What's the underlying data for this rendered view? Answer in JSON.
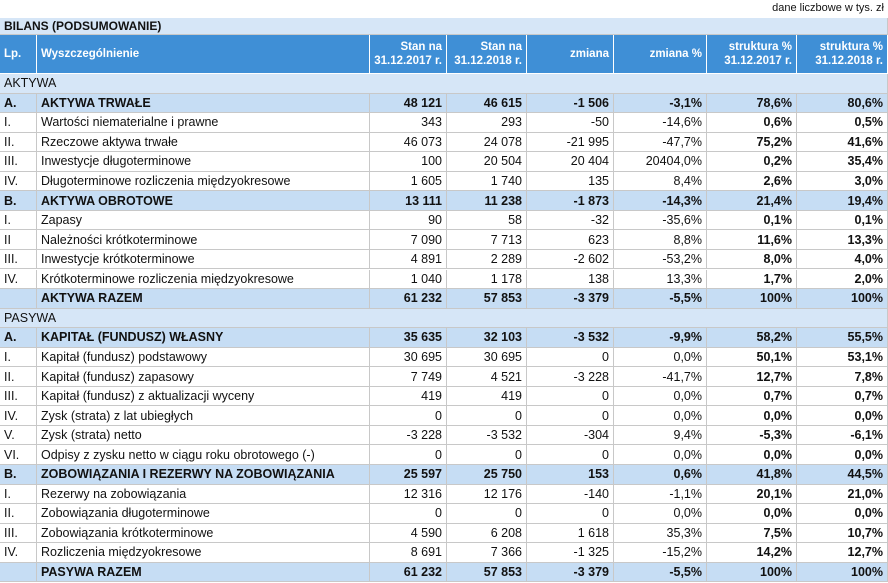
{
  "note": "dane liczbowe w tys. zł",
  "title": "BILANS (PODSUMOWANIE)",
  "header": [
    [
      "Lp."
    ],
    [
      "Wyszczególnienie"
    ],
    [
      "Stan na",
      "31.12.2017 r."
    ],
    [
      "Stan na",
      "31.12.2018 r."
    ],
    [
      "zmiana"
    ],
    [
      "zmiana %"
    ],
    [
      "struktura %",
      "31.12.2017 r."
    ],
    [
      "struktura %",
      "31.12.2018 r."
    ]
  ],
  "sections": [
    {
      "title": "AKTYWA",
      "groups": [
        {
          "row": [
            "A.",
            "AKTYWA TRWAŁE",
            "48 121",
            "46 615",
            "-1 506",
            "-3,1%",
            "78,6%",
            "80,6%"
          ],
          "items": [
            [
              "I.",
              "Wartości niematerialne i prawne",
              "343",
              "293",
              "-50",
              "-14,6%",
              "0,6%",
              "0,5%"
            ],
            [
              "II.",
              "Rzeczowe aktywa trwałe",
              "46 073",
              "24 078",
              "-21 995",
              "-47,7%",
              "75,2%",
              "41,6%"
            ],
            [
              "III.",
              "Inwestycje długoterminowe",
              "100",
              "20 504",
              "20 404",
              "20404,0%",
              "0,2%",
              "35,4%"
            ],
            [
              "IV.",
              "Długoterminowe rozliczenia międzyokresowe",
              "1 605",
              "1 740",
              "135",
              "8,4%",
              "2,6%",
              "3,0%"
            ]
          ]
        },
        {
          "row": [
            "B.",
            "AKTYWA OBROTOWE",
            "13 111",
            "11 238",
            "-1 873",
            "-14,3%",
            "21,4%",
            "19,4%"
          ],
          "items": [
            [
              "I.",
              "Zapasy",
              "90",
              "58",
              "-32",
              "-35,6%",
              "0,1%",
              "0,1%"
            ],
            [
              "II",
              "Należności krótkoterminowe",
              "7 090",
              "7 713",
              "623",
              "8,8%",
              "11,6%",
              "13,3%"
            ],
            [
              "III.",
              "Inwestycje krótkoterminowe",
              "4 891",
              "2 289",
              "-2 602",
              "-53,2%",
              "8,0%",
              "4,0%"
            ],
            [
              "IV.",
              "Krótkoterminowe rozliczenia międzyokresowe",
              "1 040",
              "1 178",
              "138",
              "13,3%",
              "1,7%",
              "2,0%"
            ]
          ]
        }
      ],
      "total": [
        "AKTYWA RAZEM",
        "61 232",
        "57 853",
        "-3 379",
        "-5,5%",
        "100%",
        "100%"
      ]
    },
    {
      "title": "PASYWA",
      "groups": [
        {
          "row": [
            "A.",
            "KAPITAŁ (FUNDUSZ) WŁASNY",
            "35 635",
            "32 103",
            "-3 532",
            "-9,9%",
            "58,2%",
            "55,5%"
          ],
          "items": [
            [
              "I.",
              "Kapitał (fundusz) podstawowy",
              "30 695",
              "30 695",
              "0",
              "0,0%",
              "50,1%",
              "53,1%"
            ],
            [
              "II.",
              "Kapitał (fundusz) zapasowy",
              "7 749",
              "4 521",
              "-3 228",
              "-41,7%",
              "12,7%",
              "7,8%"
            ],
            [
              "III.",
              "Kapitał (fundusz) z aktualizacji wyceny",
              "419",
              "419",
              "0",
              "0,0%",
              "0,7%",
              "0,7%"
            ],
            [
              "IV.",
              "Zysk (strata) z lat ubiegłych",
              "0",
              "0",
              "0",
              "0,0%",
              "0,0%",
              "0,0%"
            ],
            [
              "V.",
              "Zysk (strata) netto",
              "-3 228",
              "-3 532",
              "-304",
              "9,4%",
              "-5,3%",
              "-6,1%"
            ],
            [
              "VI.",
              "Odpisy z zysku netto w ciągu roku obrotowego (-)",
              "0",
              "0",
              "0",
              "0,0%",
              "0,0%",
              "0,0%"
            ]
          ]
        },
        {
          "row": [
            "B.",
            "ZOBOWIĄZANIA I REZERWY NA ZOBOWIĄZANIA",
            "25 597",
            "25 750",
            "153",
            "0,6%",
            "41,8%",
            "44,5%"
          ],
          "items": [
            [
              "I.",
              "Rezerwy na zobowiązania",
              "12 316",
              "12 176",
              "-140",
              "-1,1%",
              "20,1%",
              "21,0%"
            ],
            [
              "II.",
              "Zobowiązania długoterminowe",
              "0",
              "0",
              "0",
              "0,0%",
              "0,0%",
              "0,0%"
            ],
            [
              "III.",
              "Zobowiązania krótkoterminowe",
              "4 590",
              "6 208",
              "1 618",
              "35,3%",
              "7,5%",
              "10,7%"
            ],
            [
              "IV.",
              "Rozliczenia międzyokresowe",
              "8 691",
              "7 366",
              "-1 325",
              "-15,2%",
              "14,2%",
              "12,7%"
            ]
          ]
        }
      ],
      "total": [
        "PASYWA RAZEM",
        "61 232",
        "57 853",
        "-3 379",
        "-5,5%",
        "100%",
        "100%"
      ]
    }
  ]
}
